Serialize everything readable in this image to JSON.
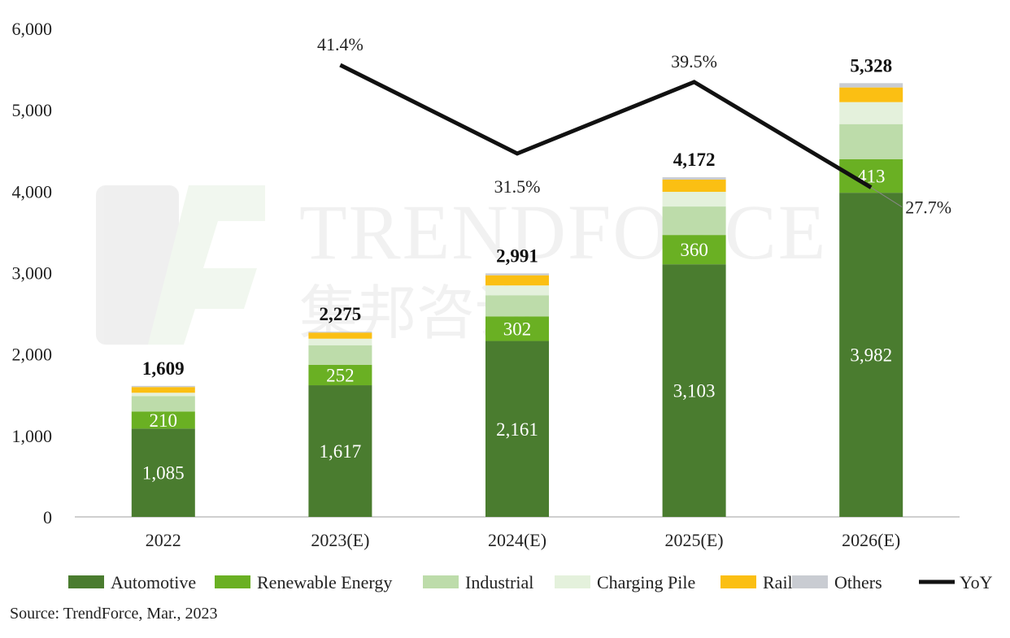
{
  "chart_data": {
    "type": "bar",
    "stacked": true,
    "categories": [
      "2022",
      "2023(E)",
      "2024(E)",
      "2025(E)",
      "2026(E)"
    ],
    "ylim": [
      0,
      6000
    ],
    "yticks": [
      "0",
      "1,000",
      "2,000",
      "3,000",
      "4,000",
      "5,000",
      "6,000"
    ],
    "ytick_values": [
      0,
      1000,
      2000,
      3000,
      4000,
      5000,
      6000
    ],
    "series": [
      {
        "name": "Automotive",
        "color": "#4a7c2f",
        "values": [
          1085,
          1617,
          2161,
          3103,
          3982
        ],
        "labels": [
          "1,085",
          "1,617",
          "2,161",
          "3,103",
          "3,982"
        ]
      },
      {
        "name": "Renewable Energy",
        "color": "#6ab023",
        "values": [
          210,
          252,
          302,
          360,
          413
        ],
        "labels": [
          "210",
          "252",
          "302",
          "360",
          "413"
        ]
      },
      {
        "name": "Industrial",
        "color": "#bddcaa",
        "values": [
          190,
          240,
          260,
          350,
          430
        ]
      },
      {
        "name": "Charging Pile",
        "color": "#e4f1dc",
        "values": [
          40,
          80,
          120,
          180,
          270
        ]
      },
      {
        "name": "Rail",
        "color": "#fbbf13",
        "values": [
          70,
          75,
          125,
          150,
          180
        ]
      },
      {
        "name": "Others",
        "color": "#c9ccd2",
        "values": [
          14,
          11,
          23,
          29,
          53
        ]
      }
    ],
    "totals": [
      "1,609",
      "2,275",
      "2,991",
      "4,172",
      "5,328"
    ],
    "yoy": {
      "name": "YoY",
      "color": "#111111",
      "x": [
        "2023(E)",
        "2024(E)",
        "2025(E)",
        "2026(E)"
      ],
      "values": [
        41.4,
        31.5,
        39.5,
        27.7
      ],
      "labels": [
        "41.4%",
        "31.5%",
        "39.5%",
        "27.7%"
      ]
    },
    "legend_position": "bottom",
    "grid": false
  },
  "watermark": {
    "text": "TRENDFORCE",
    "cjk": "集邦咨询"
  },
  "source_text": "Source: TrendForce, Mar., 2023"
}
